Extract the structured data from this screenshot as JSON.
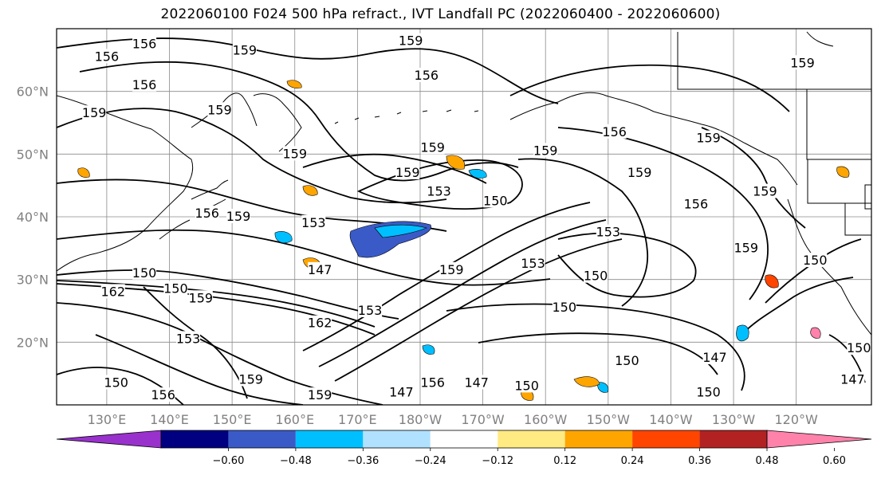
{
  "title": "2022060100 F024 500 hPa refract., IVT Landfall PC (2022060400 - 2022060600)",
  "map": {
    "lon_range": [
      122,
      252
    ],
    "lat_range": [
      10,
      70
    ],
    "lat_ticks": [
      {
        "value": 20,
        "label": "20°N"
      },
      {
        "value": 30,
        "label": "30°N"
      },
      {
        "value": 40,
        "label": "40°N"
      },
      {
        "value": 50,
        "label": "50°N"
      },
      {
        "value": 60,
        "label": "60°N"
      }
    ],
    "lon_ticks": [
      {
        "value": 130,
        "label": "130°E"
      },
      {
        "value": 140,
        "label": "140°E"
      },
      {
        "value": 150,
        "label": "150°E"
      },
      {
        "value": 160,
        "label": "160°E"
      },
      {
        "value": 170,
        "label": "170°E"
      },
      {
        "value": 180,
        "label": "180°W"
      },
      {
        "value": 190,
        "label": "170°W"
      },
      {
        "value": 200,
        "label": "160°W"
      },
      {
        "value": 210,
        "label": "150°W"
      },
      {
        "value": 220,
        "label": "140°W"
      },
      {
        "value": 230,
        "label": "130°W"
      },
      {
        "value": 240,
        "label": "120°W"
      }
    ],
    "contour_labels": [
      {
        "text": "156",
        "lon": 136,
        "lat": 67.5
      },
      {
        "text": "156",
        "lon": 130,
        "lat": 65.5
      },
      {
        "text": "159",
        "lon": 152,
        "lat": 66.5
      },
      {
        "text": "159",
        "lon": 178.5,
        "lat": 68
      },
      {
        "text": "156",
        "lon": 181,
        "lat": 62.5
      },
      {
        "text": "156",
        "lon": 136,
        "lat": 61
      },
      {
        "text": "159",
        "lon": 128,
        "lat": 56.5
      },
      {
        "text": "159",
        "lon": 148,
        "lat": 57
      },
      {
        "text": "159",
        "lon": 160,
        "lat": 50
      },
      {
        "text": "159",
        "lon": 182,
        "lat": 51
      },
      {
        "text": "159",
        "lon": 178,
        "lat": 47
      },
      {
        "text": "153",
        "lon": 183,
        "lat": 44
      },
      {
        "text": "150",
        "lon": 192,
        "lat": 42.5
      },
      {
        "text": "156",
        "lon": 146,
        "lat": 40.5
      },
      {
        "text": "159",
        "lon": 151,
        "lat": 40
      },
      {
        "text": "153",
        "lon": 163,
        "lat": 39
      },
      {
        "text": "147",
        "lon": 164,
        "lat": 31.5
      },
      {
        "text": "150",
        "lon": 136,
        "lat": 31
      },
      {
        "text": "162",
        "lon": 131,
        "lat": 28
      },
      {
        "text": "150",
        "lon": 141,
        "lat": 28.5
      },
      {
        "text": "159",
        "lon": 145,
        "lat": 27
      },
      {
        "text": "159",
        "lon": 185,
        "lat": 31.5
      },
      {
        "text": "153",
        "lon": 198,
        "lat": 32.5
      },
      {
        "text": "153",
        "lon": 210,
        "lat": 37.5
      },
      {
        "text": "150",
        "lon": 208,
        "lat": 30.5
      },
      {
        "text": "150",
        "lon": 203,
        "lat": 25.5
      },
      {
        "text": "153",
        "lon": 172,
        "lat": 25
      },
      {
        "text": "162",
        "lon": 164,
        "lat": 23
      },
      {
        "text": "153",
        "lon": 143,
        "lat": 20.5
      },
      {
        "text": "150",
        "lon": 213,
        "lat": 17
      },
      {
        "text": "147",
        "lon": 227,
        "lat": 17.5
      },
      {
        "text": "159",
        "lon": 200,
        "lat": 50.5
      },
      {
        "text": "156",
        "lon": 211,
        "lat": 53.5
      },
      {
        "text": "159",
        "lon": 215,
        "lat": 47
      },
      {
        "text": "156",
        "lon": 224,
        "lat": 42
      },
      {
        "text": "159",
        "lon": 226,
        "lat": 52.5
      },
      {
        "text": "159",
        "lon": 241,
        "lat": 64.5
      },
      {
        "text": "159",
        "lon": 235,
        "lat": 44
      },
      {
        "text": "159",
        "lon": 232,
        "lat": 35
      },
      {
        "text": "150",
        "lon": 243,
        "lat": 33
      },
      {
        "text": "150",
        "lon": 250,
        "lat": 19
      },
      {
        "text": "159",
        "lon": 153,
        "lat": 14
      },
      {
        "text": "150",
        "lon": 131.5,
        "lat": 13.5
      },
      {
        "text": "156",
        "lon": 139,
        "lat": 11.5
      },
      {
        "text": "159",
        "lon": 164,
        "lat": 11.5
      },
      {
        "text": "147",
        "lon": 177,
        "lat": 12
      },
      {
        "text": "156",
        "lon": 182,
        "lat": 13.5
      },
      {
        "text": "147",
        "lon": 189,
        "lat": 13.5
      },
      {
        "text": "150",
        "lon": 197,
        "lat": 13
      },
      {
        "text": "150",
        "lon": 226,
        "lat": 12
      },
      {
        "text": "147",
        "lon": 249,
        "lat": 14
      }
    ]
  },
  "colorbar": {
    "colors": [
      "#9932cc",
      "#000080",
      "#3a5bc7",
      "#00bfff",
      "#b0e2ff",
      "#ffffff",
      "#ffeb82",
      "#ffa500",
      "#ff4500",
      "#b22222",
      "#ff82ab"
    ],
    "tick_labels": [
      "−0.60",
      "−0.48",
      "−0.36",
      "−0.24",
      "−0.12",
      "0.12",
      "0.24",
      "0.36",
      "0.48",
      "0.60"
    ]
  }
}
